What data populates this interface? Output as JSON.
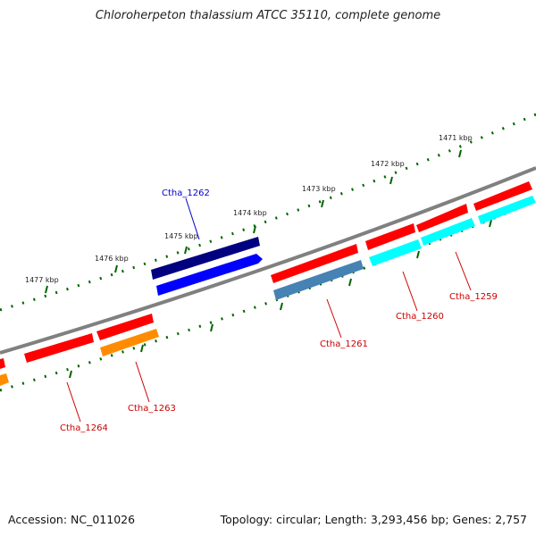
{
  "title": "Chloroherpeton thalassium ATCC 35110, complete genome",
  "footer": {
    "accession": "Accession: NC_011026",
    "summary": "Topology: circular; Length: 3,293,456 bp; Genes: 2,757"
  },
  "tick_labels": [
    "1471 kbp",
    "1472 kbp",
    "1473 kbp",
    "1474 kbp",
    "1475 kbp",
    "1476 kbp",
    "1477 kbp"
  ],
  "genes": [
    {
      "name": "Ctha_1259",
      "strand": "reverse",
      "color": "#cc0000"
    },
    {
      "name": "Ctha_1260",
      "strand": "reverse",
      "color": "#cc0000"
    },
    {
      "name": "Ctha_1261",
      "strand": "reverse",
      "color": "#cc0000"
    },
    {
      "name": "Ctha_1262",
      "strand": "forward",
      "color": "#0000cc"
    },
    {
      "name": "Ctha_1263",
      "strand": "reverse",
      "color": "#cc0000"
    },
    {
      "name": "Ctha_1264",
      "strand": "reverse",
      "color": "#cc0000"
    }
  ],
  "colors": {
    "forward_cds": "#0000ff",
    "forward_gene": "#000080",
    "reverse_gene": "#ff0000",
    "cds_cyan": "#00ffff",
    "cds_steelblue": "#4682b4",
    "cds_orange": "#ff8c00",
    "backbone": "#808080",
    "ticks": "#006400"
  }
}
